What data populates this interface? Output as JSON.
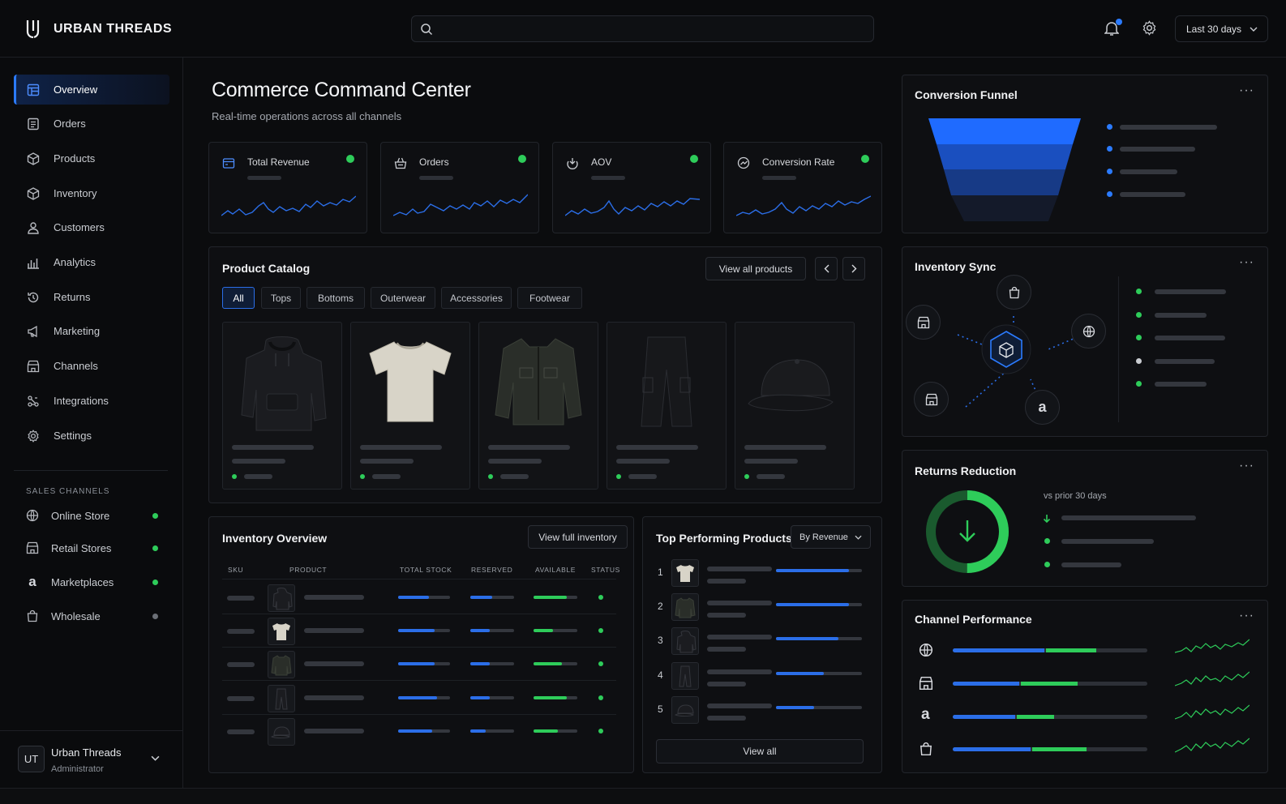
{
  "brand": {
    "name": "URBAN THREADS",
    "logo": "UT-monogram-logo"
  },
  "header": {
    "search_placeholder": "",
    "date_range": "Last 30 days",
    "icons": [
      "search-icon",
      "bell-icon",
      "gear-icon",
      "chevron-down-icon"
    ]
  },
  "sidebar": {
    "items": [
      {
        "label": "Overview",
        "icon": "dashboard-icon",
        "active": true
      },
      {
        "label": "Orders",
        "icon": "orders-icon"
      },
      {
        "label": "Products",
        "icon": "box-icon"
      },
      {
        "label": "Inventory",
        "icon": "box-icon"
      },
      {
        "label": "Customers",
        "icon": "user-icon"
      },
      {
        "label": "Analytics",
        "icon": "chart-icon"
      },
      {
        "label": "Returns",
        "icon": "history-icon"
      },
      {
        "label": "Marketing",
        "icon": "megaphone-icon"
      },
      {
        "label": "Channels",
        "icon": "store-icon"
      },
      {
        "label": "Integrations",
        "icon": "integrations-icon"
      },
      {
        "label": "Settings",
        "icon": "gear-icon"
      }
    ],
    "sales_channels_label": "SALES CHANNELS",
    "channels": [
      {
        "label": "Online Store",
        "icon": "globe-icon",
        "status_color": "#2ecc5a"
      },
      {
        "label": "Retail Stores",
        "icon": "store-icon",
        "status_color": "#2ecc5a"
      },
      {
        "label": "Marketplaces",
        "icon": "amazon-icon",
        "status_color": "#2ecc5a"
      },
      {
        "label": "Wholesale",
        "icon": "bag-icon",
        "status_color": "#6b6f76"
      }
    ],
    "user": {
      "initials": "UT",
      "name": "Urban Threads",
      "role": "Administrator"
    }
  },
  "main": {
    "title": "Commerce Command Center",
    "subtitle": "Real-time operations across all channels",
    "kpis": [
      {
        "label": "Total Revenue",
        "icon": "revenue-icon"
      },
      {
        "label": "Orders",
        "icon": "basket-icon"
      },
      {
        "label": "AOV",
        "icon": "aov-icon"
      },
      {
        "label": "Conversion Rate",
        "icon": "conversion-icon"
      }
    ],
    "catalog": {
      "title": "Product Catalog",
      "view_all": "View all products",
      "tabs": [
        "All",
        "Tops",
        "Bottoms",
        "Outerwear",
        "Accessories",
        "Footwear"
      ],
      "active_tab": "All",
      "products": [
        "hoodie-image",
        "tshirt-image",
        "jacket-image",
        "cargo-pants-image",
        "cap-image"
      ]
    },
    "inventory": {
      "title": "Inventory Overview",
      "view_all": "View full inventory",
      "columns": [
        "SKU",
        "PRODUCT",
        "TOTAL STOCK",
        "RESERVED",
        "AVAILABLE",
        "STATUS"
      ],
      "rows": [
        {
          "thumb": "hoodie",
          "total_stock": 0.6,
          "reserved": 0.5,
          "available": 0.75
        },
        {
          "thumb": "tshirt",
          "total_stock": 0.7,
          "reserved": 0.45,
          "available": 0.45
        },
        {
          "thumb": "jacket",
          "total_stock": 0.7,
          "reserved": 0.45,
          "available": 0.65
        },
        {
          "thumb": "pants",
          "total_stock": 0.75,
          "reserved": 0.45,
          "available": 0.75
        },
        {
          "thumb": "cap",
          "total_stock": 0.65,
          "reserved": 0.35,
          "available": 0.55
        }
      ]
    },
    "top_products": {
      "title": "Top Performing Products",
      "sort": "By Revenue",
      "ranks": [
        "1",
        "2",
        "3",
        "4",
        "5"
      ],
      "values": [
        0.85,
        0.85,
        0.73,
        0.56,
        0.44
      ],
      "view_all": "View all"
    }
  },
  "right": {
    "funnel": {
      "title": "Conversion Funnel",
      "stages": 4,
      "colors": [
        "#1f6bff",
        "#1a4fbf",
        "#173a86",
        "#141a2a"
      ]
    },
    "inventory_sync": {
      "title": "Inventory Sync",
      "nodes": [
        "bag-icon",
        "store-icon",
        "globe-icon",
        "store-icon",
        "amazon-icon"
      ],
      "status_colors": [
        "#2ecc5a",
        "#2ecc5a",
        "#2ecc5a",
        "#c9ccd1",
        "#2ecc5a"
      ]
    },
    "returns": {
      "title": "Returns Reduction",
      "vs_label": "vs prior 30 days",
      "ring_fill": 0.5
    },
    "channel_perf": {
      "title": "Channel Performance",
      "channels": [
        {
          "icon": "globe-icon",
          "blue": 0.47,
          "green": 0.26
        },
        {
          "icon": "store-icon",
          "blue": 0.34,
          "green": 0.29
        },
        {
          "icon": "amazon-icon",
          "blue": 0.32,
          "green": 0.19
        },
        {
          "icon": "bag-icon",
          "blue": 0.4,
          "green": 0.28
        }
      ]
    }
  },
  "colors": {
    "accent": "#2b7bff",
    "success": "#2ecc5a",
    "bg": "#0b0c0e"
  }
}
